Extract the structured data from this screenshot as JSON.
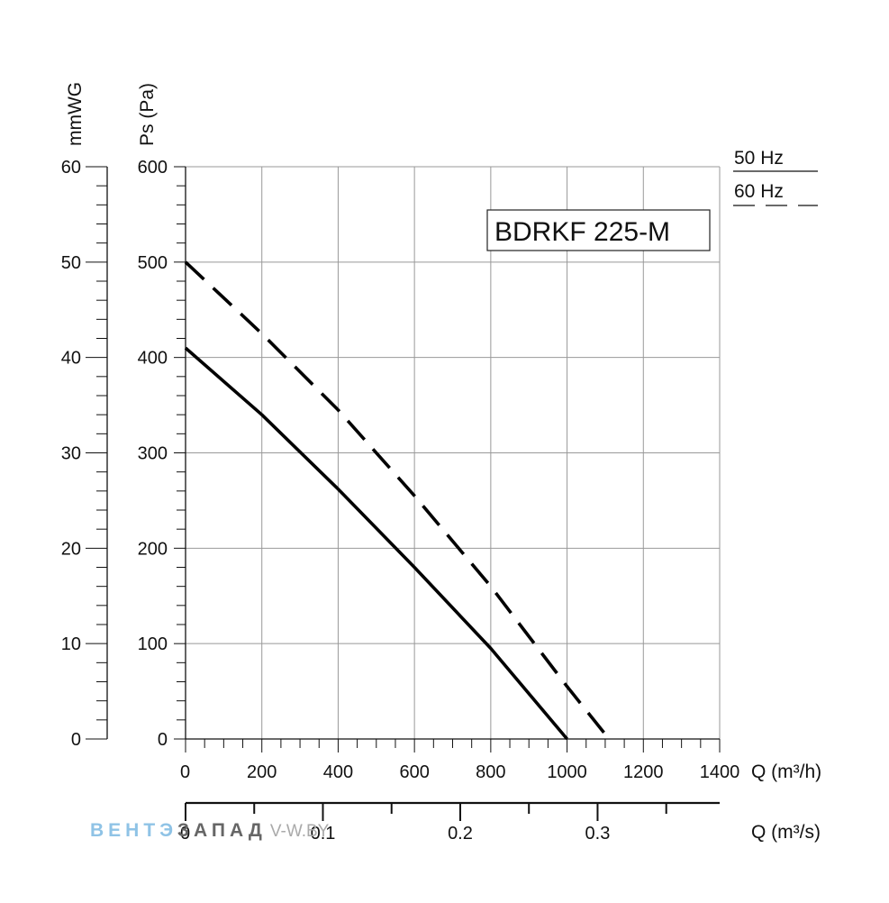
{
  "chart_data": {
    "type": "line",
    "title": "BDRKF 225-M",
    "xlabel": "Q (m³/h)",
    "x2label": "Q (m³/s)",
    "ylabel": "Ps (Pa)",
    "y2label": "mmWG",
    "xlim": [
      0,
      1400
    ],
    "ylim": [
      0,
      600
    ],
    "x_ticks": [
      "0",
      "200",
      "400",
      "600",
      "800",
      "1000",
      "1200",
      "1400"
    ],
    "y_ticks": [
      "0",
      "100",
      "200",
      "300",
      "400",
      "500",
      "600"
    ],
    "y2_ticks": [
      "0",
      "10",
      "20",
      "30",
      "40",
      "50",
      "60"
    ],
    "x2_ticks": [
      "0",
      "0.1",
      "0.2",
      "0.3"
    ],
    "grid": true,
    "legend": "top-right",
    "series": [
      {
        "name": "50 Hz",
        "style": "solid",
        "x": [
          0,
          200,
          400,
          600,
          800,
          1000
        ],
        "y": [
          410,
          340,
          262,
          180,
          95,
          0
        ]
      },
      {
        "name": "60 Hz",
        "style": "dashed",
        "x": [
          0,
          200,
          400,
          600,
          800,
          1000,
          1110
        ],
        "y": [
          500,
          425,
          345,
          255,
          160,
          55,
          0
        ]
      }
    ]
  },
  "watermark": {
    "part1": "ВЕНТЭ",
    "part2": "ЗАПАД",
    "part3": "V-W.BY"
  }
}
